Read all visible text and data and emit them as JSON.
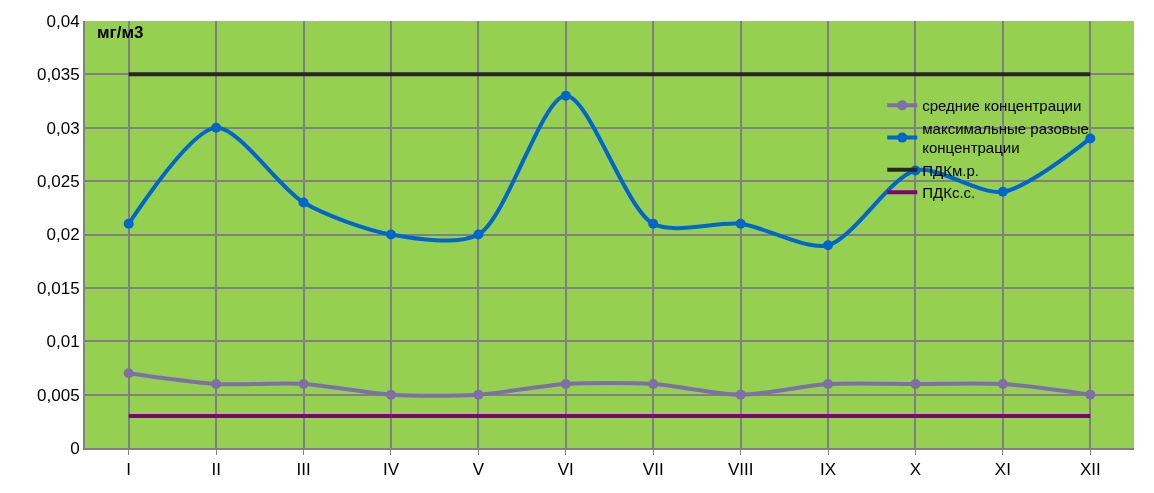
{
  "chart_data": {
    "type": "line",
    "ylabel": "мг/м3",
    "categories": [
      "I",
      "II",
      "III",
      "IV",
      "V",
      "VI",
      "VII",
      "VIII",
      "IX",
      "X",
      "XI",
      "XII"
    ],
    "series": [
      {
        "name": "средние концентрации",
        "color": "#7f6fa8",
        "marker": "circle",
        "values": [
          0.007,
          0.006,
          0.006,
          0.005,
          0.005,
          0.006,
          0.006,
          0.005,
          0.006,
          0.006,
          0.006,
          0.005
        ]
      },
      {
        "name": "максимальные разовые концентрации",
        "color": "#0066cc",
        "marker": "circle",
        "values": [
          0.021,
          0.03,
          0.023,
          0.02,
          0.02,
          0.033,
          0.021,
          0.021,
          0.019,
          0.026,
          0.024,
          0.029
        ]
      },
      {
        "name": "ПДКм.р.",
        "color": "#262626",
        "marker": "none",
        "values": [
          0.035,
          0.035,
          0.035,
          0.035,
          0.035,
          0.035,
          0.035,
          0.035,
          0.035,
          0.035,
          0.035,
          0.035
        ]
      },
      {
        "name": "ПДКс.с.",
        "color": "#800080",
        "marker": "none",
        "values": [
          0.003,
          0.003,
          0.003,
          0.003,
          0.003,
          0.003,
          0.003,
          0.003,
          0.003,
          0.003,
          0.003,
          0.003
        ]
      }
    ],
    "ylim": [
      0,
      0.04
    ],
    "yticks": [
      0,
      {
        "value": 0.005,
        "label": "0,005"
      },
      {
        "value": 0.01,
        "label": "0,01"
      },
      {
        "value": 0.015,
        "label": "0,015"
      },
      {
        "value": 0.02,
        "label": "0,02"
      },
      {
        "value": 0.025,
        "label": "0,025"
      },
      {
        "value": 0.03,
        "label": "0,03"
      },
      {
        "value": 0.035,
        "label": "0,035"
      },
      {
        "value": 0.04,
        "label": "0,04"
      }
    ],
    "grid": true,
    "legend": "right",
    "line_style": "solid"
  }
}
